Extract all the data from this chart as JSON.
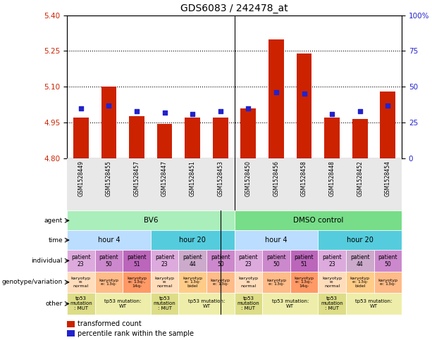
{
  "title": "GDS6083 / 242478_at",
  "samples": [
    "GSM1528449",
    "GSM1528455",
    "GSM1528457",
    "GSM1528447",
    "GSM1528451",
    "GSM1528453",
    "GSM1528450",
    "GSM1528456",
    "GSM1528458",
    "GSM1528448",
    "GSM1528452",
    "GSM1528454"
  ],
  "bar_values": [
    4.97,
    5.1,
    4.975,
    4.943,
    4.97,
    4.97,
    5.01,
    5.3,
    5.24,
    4.97,
    4.965,
    5.08
  ],
  "dot_values": [
    35,
    37,
    33,
    32,
    31,
    33,
    35,
    46,
    45,
    31,
    33,
    37
  ],
  "y_min": 4.8,
  "y_max": 5.4,
  "y_ticks": [
    4.8,
    4.95,
    5.1,
    5.25,
    5.4
  ],
  "y_right_ticks": [
    0,
    25,
    50,
    75,
    100
  ],
  "bar_color": "#cc2200",
  "dot_color": "#2222cc",
  "bar_bottom": 4.8,
  "agent_labels": [
    {
      "text": "BV6",
      "start": 0,
      "end": 5,
      "color": "#aaeebb"
    },
    {
      "text": "DMSO control",
      "start": 6,
      "end": 11,
      "color": "#77dd88"
    }
  ],
  "time_labels": [
    {
      "text": "hour 4",
      "start": 0,
      "end": 2,
      "color": "#bbddff"
    },
    {
      "text": "hour 20",
      "start": 3,
      "end": 5,
      "color": "#55ccdd"
    },
    {
      "text": "hour 4",
      "start": 6,
      "end": 8,
      "color": "#bbddff"
    },
    {
      "text": "hour 20",
      "start": 9,
      "end": 11,
      "color": "#55ccdd"
    }
  ],
  "individual_labels": [
    {
      "text": "patient\n23",
      "idx": 0,
      "color": "#ddaadd"
    },
    {
      "text": "patient\n50",
      "idx": 1,
      "color": "#cc88cc"
    },
    {
      "text": "patient\n51",
      "idx": 2,
      "color": "#bb66bb"
    },
    {
      "text": "patient\n23",
      "idx": 3,
      "color": "#ddaadd"
    },
    {
      "text": "patient\n44",
      "idx": 4,
      "color": "#ccaacc"
    },
    {
      "text": "patient\n50",
      "idx": 5,
      "color": "#cc88cc"
    },
    {
      "text": "patient\n23",
      "idx": 6,
      "color": "#ddaadd"
    },
    {
      "text": "patient\n50",
      "idx": 7,
      "color": "#cc88cc"
    },
    {
      "text": "patient\n51",
      "idx": 8,
      "color": "#bb66bb"
    },
    {
      "text": "patient\n23",
      "idx": 9,
      "color": "#ddaadd"
    },
    {
      "text": "patient\n44",
      "idx": 10,
      "color": "#ccaacc"
    },
    {
      "text": "patient\n50",
      "idx": 11,
      "color": "#cc88cc"
    }
  ],
  "geno_labels": [
    {
      "text": "karyotyp\ne:\nnormal",
      "idx": 0,
      "color": "#ffddbb"
    },
    {
      "text": "karyotyp\ne: 13q-",
      "idx": 1,
      "color": "#ffbb88"
    },
    {
      "text": "karyotyp\ne: 13q-,\n14q-",
      "idx": 2,
      "color": "#ff9966"
    },
    {
      "text": "karyotyp\ne:\nnormal",
      "idx": 3,
      "color": "#ffddbb"
    },
    {
      "text": "karyotyp\ne: 13q-\nbidel",
      "idx": 4,
      "color": "#ffcc88"
    },
    {
      "text": "karyotyp\ne: 13q-",
      "idx": 5,
      "color": "#ffbb88"
    },
    {
      "text": "karyotyp\ne:\nnormal",
      "idx": 6,
      "color": "#ffddbb"
    },
    {
      "text": "karyotyp\ne: 13q-",
      "idx": 7,
      "color": "#ffbb88"
    },
    {
      "text": "karyotyp\ne: 13q-,\n14q-",
      "idx": 8,
      "color": "#ff9966"
    },
    {
      "text": "karyotyp\ne:\nnormal",
      "idx": 9,
      "color": "#ffddbb"
    },
    {
      "text": "karyotyp\ne: 13q-\nbidel",
      "idx": 10,
      "color": "#ffcc88"
    },
    {
      "text": "karyotyp\ne: 13q-",
      "idx": 11,
      "color": "#ffbb88"
    }
  ],
  "other_labels": [
    {
      "text": "tp53\nmutation\n: MUT",
      "start": 0,
      "end": 0,
      "color": "#dddd88"
    },
    {
      "text": "tp53 mutation:\nWT",
      "start": 1,
      "end": 2,
      "color": "#eeeeaa"
    },
    {
      "text": "tp53\nmutation\n: MUT",
      "start": 3,
      "end": 3,
      "color": "#dddd88"
    },
    {
      "text": "tp53 mutation:\nWT",
      "start": 4,
      "end": 5,
      "color": "#eeeeaa"
    },
    {
      "text": "tp53\nmutation\n: MUT",
      "start": 6,
      "end": 6,
      "color": "#dddd88"
    },
    {
      "text": "tp53 mutation:\nWT",
      "start": 7,
      "end": 8,
      "color": "#eeeeaa"
    },
    {
      "text": "tp53\nmutation\n: MUT",
      "start": 9,
      "end": 9,
      "color": "#dddd88"
    },
    {
      "text": "tp53 mutation:\nWT",
      "start": 10,
      "end": 11,
      "color": "#eeeeaa"
    }
  ],
  "legend_items": [
    {
      "label": "transformed count",
      "color": "#cc2200"
    },
    {
      "label": "percentile rank within the sample",
      "color": "#2222cc"
    }
  ],
  "row_labels": [
    "agent",
    "time",
    "individual",
    "genotype/variation",
    "other"
  ]
}
